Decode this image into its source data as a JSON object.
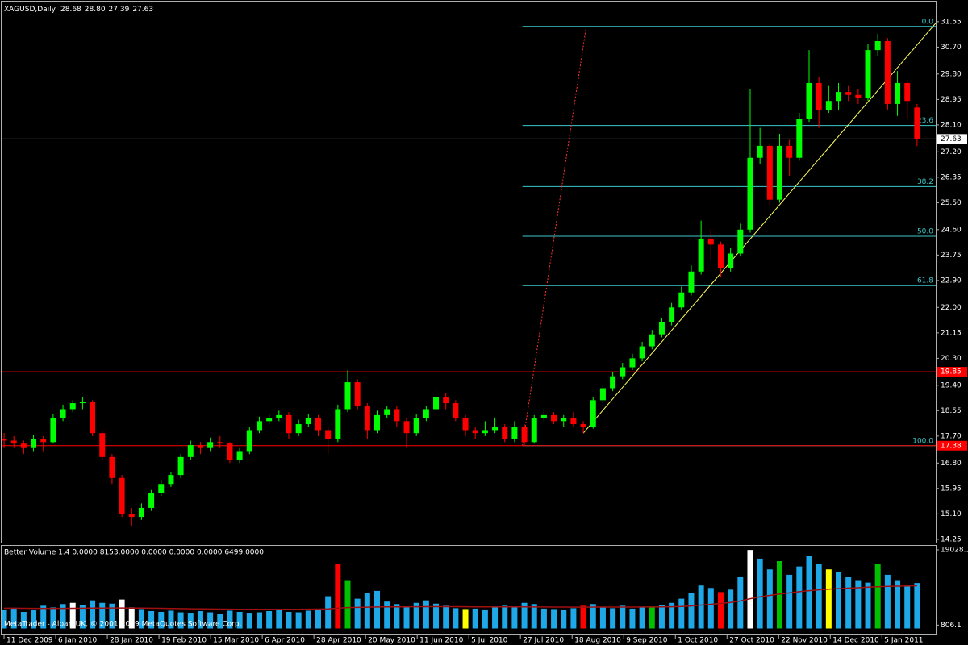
{
  "chart_data": {
    "type": "candlestick",
    "title": "XAGUSD,Daily",
    "ohlc_labels": [
      "28.68",
      "28.80",
      "27.39",
      "27.63"
    ],
    "open": [
      17.6,
      17.55,
      17.45,
      17.3,
      17.6,
      17.5,
      18.3,
      18.6,
      18.8,
      18.85,
      17.8,
      17.0,
      16.3,
      15.1,
      15.0,
      15.3,
      15.8,
      16.1,
      16.4,
      17.0,
      17.4,
      17.3,
      17.5,
      17.45,
      16.9,
      17.2,
      17.9,
      18.2,
      18.3,
      18.4,
      17.8,
      18.1,
      18.3,
      17.9,
      17.6,
      18.6,
      19.5,
      18.7,
      17.9,
      18.4,
      18.6,
      18.2,
      17.8,
      18.3,
      18.6,
      19.0,
      18.8,
      18.3,
      17.9,
      17.8,
      17.9,
      18.0,
      17.6,
      18.0,
      17.5,
      18.3,
      18.4,
      18.2,
      18.3,
      18.1,
      18.0,
      18.9,
      19.3,
      19.7,
      20.0,
      20.3,
      20.7,
      21.1,
      21.5,
      22.0,
      22.5,
      23.2,
      24.3,
      24.1,
      23.3,
      23.8,
      24.6,
      27.0,
      27.4,
      25.6,
      27.4,
      27.0,
      28.3,
      29.5,
      28.6,
      28.9,
      29.2,
      29.1,
      29.0,
      30.6,
      30.9,
      28.8,
      29.5,
      28.68
    ],
    "high": [
      17.8,
      17.7,
      17.55,
      17.75,
      17.7,
      18.45,
      18.75,
      18.9,
      19.0,
      18.9,
      17.9,
      17.1,
      16.4,
      15.3,
      15.45,
      15.9,
      16.25,
      16.5,
      17.1,
      17.55,
      17.5,
      17.65,
      17.7,
      17.5,
      17.3,
      18.0,
      18.35,
      18.45,
      18.55,
      18.5,
      18.25,
      18.45,
      18.4,
      18.0,
      18.75,
      19.9,
      19.6,
      18.8,
      18.55,
      18.7,
      18.7,
      18.3,
      18.45,
      18.7,
      19.3,
      19.15,
      18.9,
      18.4,
      18.0,
      18.2,
      18.3,
      18.1,
      18.2,
      18.1,
      18.4,
      18.6,
      18.5,
      18.4,
      18.5,
      18.2,
      19.0,
      19.4,
      19.85,
      20.15,
      20.45,
      20.85,
      21.25,
      21.65,
      22.15,
      22.7,
      23.4,
      24.9,
      24.6,
      24.2,
      24.0,
      24.8,
      29.3,
      28.0,
      27.5,
      27.8,
      27.6,
      28.5,
      30.6,
      29.7,
      29.4,
      29.5,
      29.4,
      29.3,
      30.8,
      31.15,
      31.0,
      29.9,
      29.6,
      28.8
    ],
    "low": [
      17.3,
      17.3,
      17.1,
      17.2,
      17.2,
      17.45,
      18.2,
      18.5,
      18.6,
      17.7,
      16.9,
      16.1,
      15.0,
      14.7,
      14.9,
      15.2,
      15.7,
      16.0,
      16.3,
      16.9,
      17.1,
      17.2,
      17.3,
      16.8,
      16.8,
      17.1,
      17.8,
      18.1,
      18.2,
      17.6,
      17.7,
      18.0,
      17.7,
      17.1,
      17.5,
      18.5,
      18.6,
      17.6,
      17.8,
      18.3,
      18.0,
      17.3,
      17.7,
      18.2,
      18.5,
      18.6,
      18.2,
      17.7,
      17.6,
      17.7,
      17.8,
      17.5,
      17.5,
      17.38,
      17.45,
      18.2,
      18.1,
      18.0,
      18.0,
      17.8,
      17.95,
      18.8,
      19.2,
      19.6,
      19.9,
      20.2,
      20.6,
      21.0,
      21.4,
      21.9,
      22.4,
      23.1,
      23.6,
      23.0,
      23.2,
      23.7,
      24.5,
      26.8,
      25.4,
      25.5,
      26.4,
      26.9,
      28.2,
      28.0,
      28.5,
      28.6,
      28.9,
      28.8,
      28.9,
      30.4,
      28.6,
      28.4,
      28.3,
      27.39
    ],
    "close": [
      17.55,
      17.45,
      17.3,
      17.6,
      17.5,
      18.3,
      18.6,
      18.8,
      18.85,
      17.8,
      17.0,
      16.3,
      15.1,
      15.0,
      15.3,
      15.8,
      16.1,
      16.4,
      17.0,
      17.4,
      17.3,
      17.5,
      17.45,
      16.9,
      17.2,
      17.9,
      18.2,
      18.3,
      18.4,
      17.8,
      18.1,
      18.3,
      17.9,
      17.6,
      18.6,
      19.5,
      18.7,
      17.9,
      18.4,
      18.6,
      18.2,
      17.8,
      18.3,
      18.6,
      19.0,
      18.8,
      18.3,
      17.9,
      17.8,
      17.9,
      18.0,
      17.6,
      18.0,
      17.5,
      18.3,
      18.4,
      18.2,
      18.3,
      18.1,
      18.0,
      18.9,
      19.3,
      19.7,
      20.0,
      20.3,
      20.7,
      21.1,
      21.5,
      22.0,
      22.5,
      23.2,
      24.3,
      24.1,
      23.3,
      23.8,
      24.6,
      27.0,
      27.4,
      25.6,
      27.4,
      27.0,
      28.3,
      29.5,
      28.6,
      28.9,
      29.2,
      29.1,
      29.0,
      30.6,
      30.9,
      28.8,
      29.5,
      28.9,
      27.63
    ],
    "up_color": "#00ff00",
    "down_color": "#ff0000",
    "xlim": [
      -0.25,
      94.9
    ],
    "xticks": [
      {
        "value": 0,
        "label": "11 Dec 2009"
      },
      {
        "value": 5.26,
        "label": "6 Jan 2010"
      },
      {
        "value": 10.52,
        "label": "28 Jan 2010"
      },
      {
        "value": 15.78,
        "label": "19 Feb 2010"
      },
      {
        "value": 21.04,
        "label": "15 Mar 2010"
      },
      {
        "value": 26.3,
        "label": "6 Apr 2010"
      },
      {
        "value": 31.56,
        "label": "28 Apr 2010"
      },
      {
        "value": 36.82,
        "label": "20 May 2010"
      },
      {
        "value": 42.08,
        "label": "11 Jun 2010"
      },
      {
        "value": 47.34,
        "label": "5 Jul 2010"
      },
      {
        "value": 52.6,
        "label": "27 Jul 2010"
      },
      {
        "value": 57.86,
        "label": "18 Aug 2010"
      },
      {
        "value": 63.12,
        "label": "9 Sep 2010"
      },
      {
        "value": 68.38,
        "label": "1 Oct 2010"
      },
      {
        "value": 73.64,
        "label": "27 Oct 2010"
      },
      {
        "value": 78.9,
        "label": "22 Nov 2010"
      },
      {
        "value": 84.16,
        "label": "14 Dec 2010"
      },
      {
        "value": 89.42,
        "label": "5 Jan 2011"
      }
    ],
    "ylim": [
      14.14,
      32.22
    ],
    "yticks": [
      31.55,
      {
        "value": 30.7,
        "label": "30.70"
      },
      {
        "value": 29.8,
        "label": "29.80"
      },
      28.95,
      {
        "value": 28.1,
        "label": "28.10"
      },
      {
        "value": 27.2,
        "label": "27.20"
      },
      26.35,
      {
        "value": 25.5,
        "label": "25.50"
      },
      {
        "value": 24.6,
        "label": "24.60"
      },
      23.75,
      {
        "value": 22.9,
        "label": "22.90"
      },
      {
        "value": 22.0,
        "label": "22.00"
      },
      21.15,
      {
        "value": 20.3,
        "label": "20.30"
      },
      {
        "value": 19.4,
        "label": "19.40"
      },
      18.55,
      {
        "value": 17.7,
        "label": "17.70"
      },
      {
        "value": 16.8,
        "label": "16.80"
      },
      15.95,
      {
        "value": 15.1,
        "label": "15.10"
      },
      14.25
    ],
    "current_line_color": "#909090",
    "fibonacci": {
      "color": "#3cc8c8",
      "start": 52.8,
      "levels": [
        {
          "label": "0.0",
          "price": 31.39
        },
        {
          "label": "23.6",
          "price": 28.08
        },
        {
          "label": "38.2",
          "price": 26.04
        },
        {
          "label": "50.0",
          "price": 24.38
        },
        {
          "label": "61.8",
          "price": 22.73
        },
        {
          "label": "100.0",
          "price": 17.38
        }
      ],
      "diagonal_color": "#ff3030",
      "diagonal": [
        [
          52.8,
          17.38
        ],
        [
          59.3,
          31.39
        ]
      ]
    },
    "hlines": [
      {
        "price": 19.85,
        "color": "#ff0000"
      },
      {
        "price": 17.38,
        "color": "#ff0000"
      }
    ],
    "trendline": {
      "color": "#ffff60",
      "points": [
        [
          59,
          17.8
        ],
        [
          94.9,
          31.5
        ]
      ]
    },
    "footer": "MetaTrader - Alpari UK, © 2001-2009 MetaQuotes Software Corp.",
    "volume": {
      "title": "Better Volume 1.4 0.0000 8153.0000 0.0000 0.0000 0.0000 6499.0000",
      "ylim": [
        0,
        19028.1
      ],
      "yticks": [
        19028.1,
        806.1
      ],
      "values": [
        4600,
        5000,
        4000,
        4400,
        5500,
        5100,
        5900,
        6200,
        5600,
        6800,
        6200,
        6000,
        7000,
        5100,
        4700,
        4200,
        4000,
        4300,
        3900,
        3800,
        4200,
        3900,
        3600,
        4300,
        4000,
        3800,
        3900,
        4200,
        4400,
        4000,
        3900,
        4300,
        4700,
        7800,
        15600,
        11700,
        7200,
        8500,
        9100,
        6500,
        5900,
        5200,
        6200,
        6800,
        6000,
        5500,
        4900,
        4700,
        4800,
        4600,
        5100,
        5500,
        5200,
        6200,
        5900,
        4800,
        4700,
        4400,
        4900,
        5500,
        5900,
        5200,
        4900,
        5500,
        4800,
        5100,
        5300,
        5600,
        6200,
        7200,
        8500,
        10400,
        9800,
        8800,
        9400,
        12400,
        19000,
        16900,
        14300,
        16300,
        13000,
        15000,
        17500,
        15600,
        14300,
        13700,
        12400,
        11700,
        11100,
        15600,
        13000,
        11700,
        10400,
        11000
      ],
      "colors": [
        "#1ea8e8",
        "#1ea8e8",
        "#1ea8e8",
        "#1ea8e8",
        "#1ea8e8",
        "#1ea8e8",
        "#1ea8e8",
        "#ffffff",
        "#1ea8e8",
        "#1ea8e8",
        "#1ea8e8",
        "#1ea8e8",
        "#ffffff",
        "#ffffff",
        "#1ea8e8",
        "#1ea8e8",
        "#1ea8e8",
        "#1ea8e8",
        "#1ea8e8",
        "#1ea8e8",
        "#1ea8e8",
        "#1ea8e8",
        "#1ea8e8",
        "#1ea8e8",
        "#1ea8e8",
        "#1ea8e8",
        "#1ea8e8",
        "#1ea8e8",
        "#1ea8e8",
        "#1ea8e8",
        "#1ea8e8",
        "#1ea8e8",
        "#1ea8e8",
        "#1ea8e8",
        "#ff0000",
        "#00c000",
        "#1ea8e8",
        "#1ea8e8",
        "#1ea8e8",
        "#1ea8e8",
        "#1ea8e8",
        "#1ea8e8",
        "#1ea8e8",
        "#1ea8e8",
        "#1ea8e8",
        "#1ea8e8",
        "#1ea8e8",
        "#ffff00",
        "#1ea8e8",
        "#1ea8e8",
        "#1ea8e8",
        "#1ea8e8",
        "#1ea8e8",
        "#1ea8e8",
        "#1ea8e8",
        "#1ea8e8",
        "#1ea8e8",
        "#1ea8e8",
        "#1ea8e8",
        "#ff0000",
        "#1ea8e8",
        "#1ea8e8",
        "#1ea8e8",
        "#1ea8e8",
        "#1ea8e8",
        "#1ea8e8",
        "#00c000",
        "#1ea8e8",
        "#1ea8e8",
        "#1ea8e8",
        "#1ea8e8",
        "#1ea8e8",
        "#1ea8e8",
        "#ff0000",
        "#1ea8e8",
        "#1ea8e8",
        "#ffffff",
        "#1ea8e8",
        "#1ea8e8",
        "#00c000",
        "#1ea8e8",
        "#1ea8e8",
        "#1ea8e8",
        "#1ea8e8",
        "#ffff00",
        "#1ea8e8",
        "#1ea8e8",
        "#1ea8e8",
        "#1ea8e8",
        "#00c000",
        "#1ea8e8",
        "#1ea8e8",
        "#1ea8e8",
        "#1ea8e8"
      ],
      "ma_color": "#a01010",
      "ma": [
        4900,
        4900,
        4880,
        4860,
        4850,
        4850,
        4860,
        4880,
        4900,
        4920,
        4940,
        4950,
        4950,
        4940,
        4920,
        4900,
        4870,
        4840,
        4800,
        4770,
        4740,
        4710,
        4690,
        4670,
        4650,
        4640,
        4630,
        4630,
        4630,
        4640,
        4650,
        4660,
        4680,
        4720,
        4900,
        5050,
        5100,
        5150,
        5200,
        5220,
        5230,
        5240,
        5250,
        5260,
        5270,
        5270,
        5260,
        5250,
        5240,
        5230,
        5220,
        5210,
        5210,
        5210,
        5200,
        5190,
        5180,
        5170,
        5160,
        5160,
        5170,
        5170,
        5170,
        5180,
        5180,
        5190,
        5200,
        5220,
        5250,
        5300,
        5450,
        5650,
        5850,
        6050,
        6300,
        6650,
        7200,
        7650,
        8000,
        8350,
        8600,
        8900,
        9150,
        9350,
        9500,
        9650,
        9750,
        9850,
        10000,
        10100,
        10200,
        10250,
        10300,
        10350
      ]
    }
  }
}
